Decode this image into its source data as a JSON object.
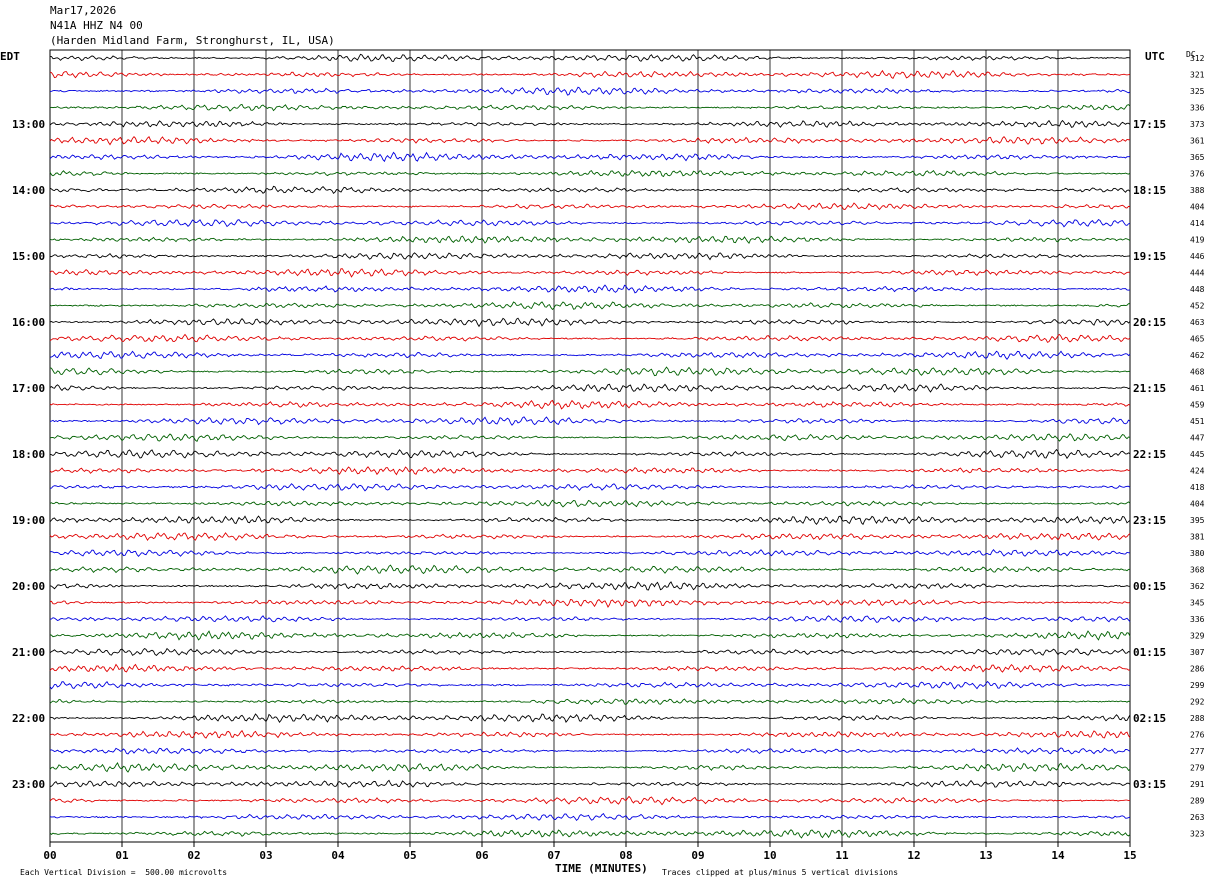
{
  "header": {
    "date": "Mar17,2026",
    "station": "N41A HHZ N4 00",
    "location": "(Harden Midland Farm, Stronghurst, IL, USA)"
  },
  "left_tz_label": "EDT",
  "right_tz_label": "UTC",
  "dc_label": "DC",
  "footer": {
    "scale_note": "Each Vertical Division =  500.00 microvolts",
    "x_title": "TIME (MINUTES)",
    "clip_note": "Traces clipped at plus/minus 5 vertical divisions"
  },
  "colors": {
    "trace_cycle": [
      "#000000",
      "#e00000",
      "#0000e0",
      "#006000"
    ],
    "grid": "#000000",
    "background": "#ffffff"
  },
  "chart_data": {
    "type": "line",
    "title": "N41A HHZ N4 00",
    "xlabel": "TIME (MINUTES)",
    "xlim": [
      0,
      15
    ],
    "x_ticks": [
      "00",
      "01",
      "02",
      "03",
      "04",
      "05",
      "06",
      "07",
      "08",
      "09",
      "10",
      "11",
      "12",
      "13",
      "14",
      "15"
    ],
    "row_count": 48,
    "left_hour_labels": [
      {
        "row": 4,
        "label": "13:00"
      },
      {
        "row": 8,
        "label": "14:00"
      },
      {
        "row": 12,
        "label": "15:00"
      },
      {
        "row": 16,
        "label": "16:00"
      },
      {
        "row": 20,
        "label": "17:00"
      },
      {
        "row": 24,
        "label": "18:00"
      },
      {
        "row": 28,
        "label": "19:00"
      },
      {
        "row": 32,
        "label": "20:00"
      },
      {
        "row": 36,
        "label": "21:00"
      },
      {
        "row": 40,
        "label": "22:00"
      },
      {
        "row": 44,
        "label": "23:00"
      }
    ],
    "right_hour_labels": [
      {
        "row": 4,
        "label": "17:15"
      },
      {
        "row": 8,
        "label": "18:15"
      },
      {
        "row": 12,
        "label": "19:15"
      },
      {
        "row": 16,
        "label": "20:15"
      },
      {
        "row": 20,
        "label": "21:15"
      },
      {
        "row": 24,
        "label": "22:15"
      },
      {
        "row": 28,
        "label": "23:15"
      },
      {
        "row": 32,
        "label": "00:15"
      },
      {
        "row": 36,
        "label": "01:15"
      },
      {
        "row": 40,
        "label": "02:15"
      },
      {
        "row": 44,
        "label": "03:15"
      }
    ],
    "dc_offsets": [
      312,
      321,
      325,
      336,
      373,
      361,
      365,
      376,
      388,
      404,
      414,
      419,
      446,
      444,
      448,
      452,
      463,
      465,
      462,
      468,
      461,
      459,
      451,
      447,
      445,
      424,
      418,
      404,
      395,
      381,
      380,
      368,
      362,
      345,
      336,
      329,
      307,
      286,
      299,
      292,
      288,
      276,
      277,
      279,
      291,
      289,
      263,
      323
    ],
    "scale_microvolts_per_division": 500.0,
    "clip_divisions": 5,
    "grid": true
  }
}
